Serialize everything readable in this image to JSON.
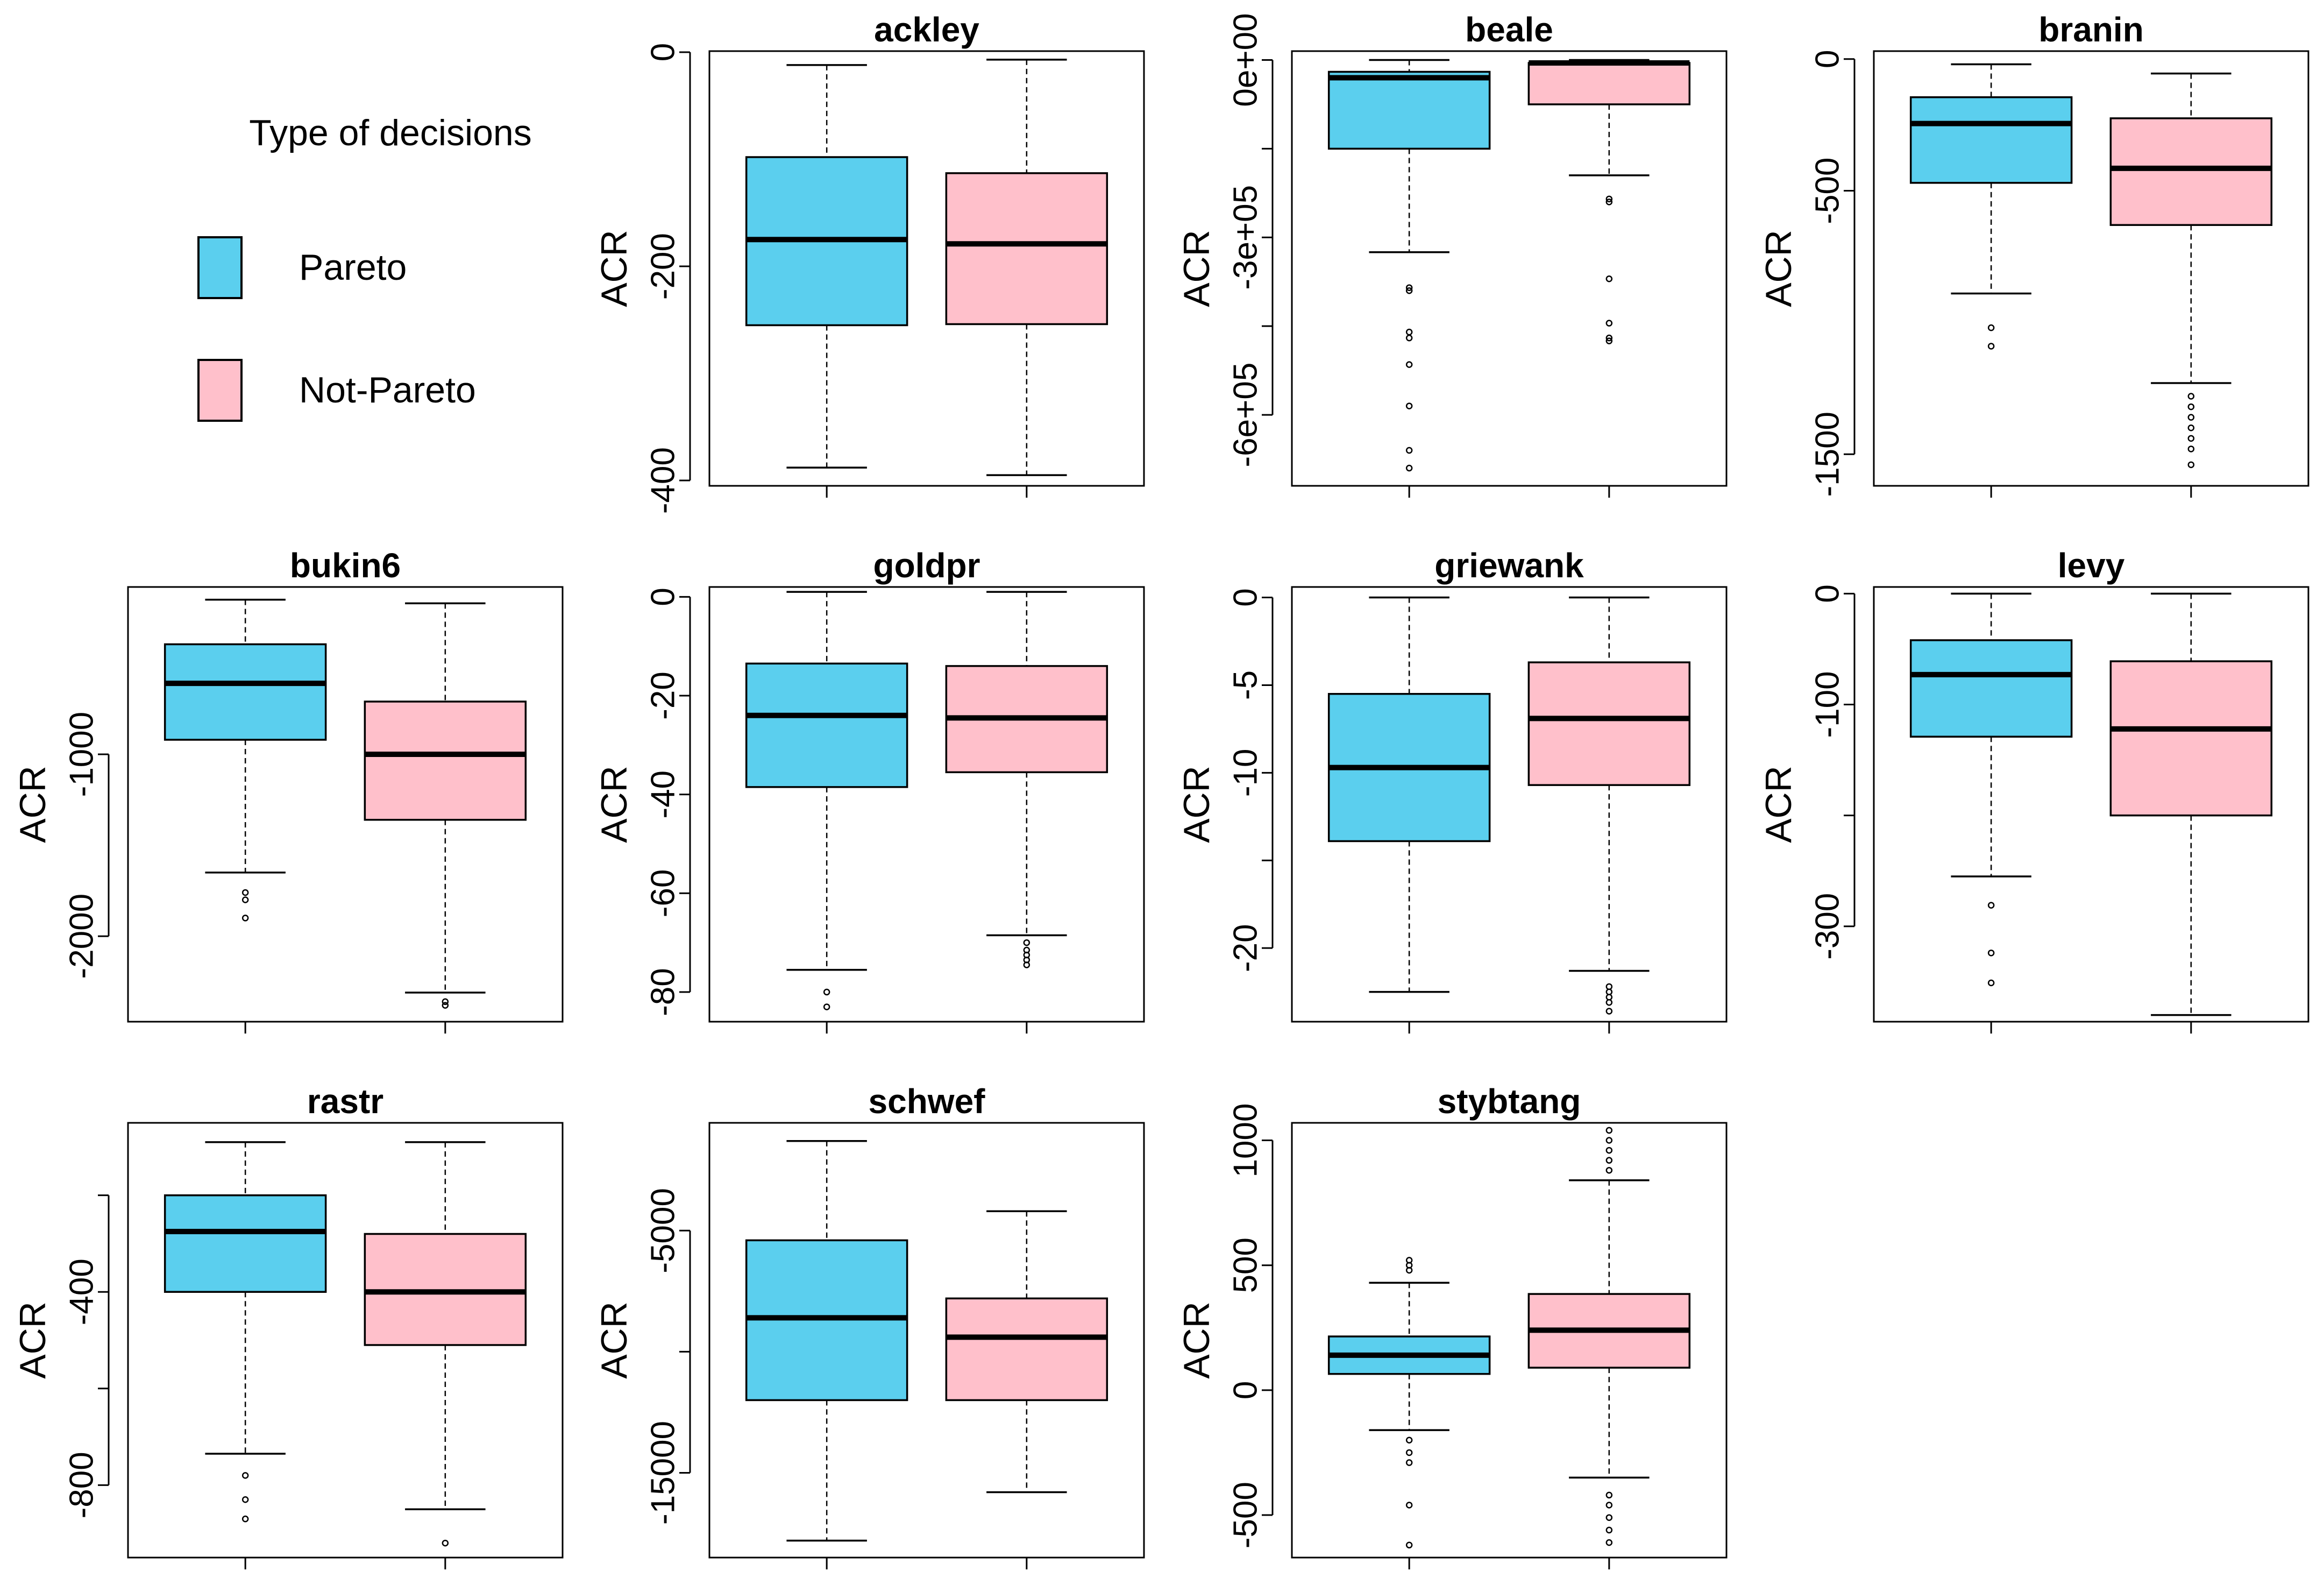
{
  "chart_data": {
    "type": "boxplot",
    "legend": {
      "title": "Type of decisions",
      "placement": "top-left",
      "items": [
        {
          "label": "Pareto",
          "color": "#5bcfee"
        },
        {
          "label": "Not-Pareto",
          "color": "#ffc0cb"
        }
      ]
    },
    "ylabel": "ACR",
    "series_colors": [
      "#5bcfee",
      "#ffc0cb"
    ],
    "panels": [
      {
        "title": "ackley",
        "ylim": [
          -405,
          1
        ],
        "yticks": [
          0,
          -200,
          -400
        ],
        "ytick_labels": [
          "0",
          "-200",
          "-400"
        ],
        "boxes": [
          {
            "series": "Pareto",
            "whisker_high": -12,
            "q3": -98,
            "median": -175,
            "q1": -255,
            "whisker_low": -388,
            "outliers": []
          },
          {
            "series": "Not-Pareto",
            "whisker_high": -7,
            "q3": -113,
            "median": -179,
            "q1": -254,
            "whisker_low": -395,
            "outliers": []
          }
        ]
      },
      {
        "title": "beale",
        "ylim": [
          -720000,
          15000
        ],
        "yticks": [
          0,
          -300000,
          -600000
        ],
        "ytick_labels": [
          "0e+00",
          "-3e+05",
          "-6e+05"
        ],
        "ytick_minor": [
          -150000,
          -450000
        ],
        "boxes": [
          {
            "series": "Pareto",
            "whisker_high": 0,
            "q3": -20000,
            "median": -30000,
            "q1": -150000,
            "whisker_low": -325000,
            "outliers": [
              -385000,
              -390000,
              -460000,
              -470000,
              -515000,
              -585000,
              -660000,
              -690000
            ]
          },
          {
            "series": "Not-Pareto",
            "whisker_high": 0,
            "q3": -5000,
            "median": -5000,
            "q1": -75000,
            "whisker_low": -195000,
            "outliers": [
              -235000,
              -240000,
              -370000,
              -445000,
              -470000,
              -475000
            ]
          }
        ]
      },
      {
        "title": "branin",
        "ylim": [
          -1620,
          30
        ],
        "yticks": [
          0,
          -500,
          -1500
        ],
        "ytick_labels": [
          "0",
          "-500",
          "-1500"
        ],
        "boxes": [
          {
            "series": "Pareto",
            "whisker_high": -20,
            "q3": -145,
            "median": -245,
            "q1": -470,
            "whisker_low": -890,
            "outliers": [
              -1020,
              -1090
            ]
          },
          {
            "series": "Not-Pareto",
            "whisker_high": -55,
            "q3": -225,
            "median": -415,
            "q1": -630,
            "whisker_low": -1230,
            "outliers": [
              -1280,
              -1320,
              -1360,
              -1400,
              -1440,
              -1480,
              -1540
            ]
          }
        ]
      },
      {
        "title": "bukin6",
        "ylim": [
          -2470,
          -80
        ],
        "yticks": [
          -1000,
          -2000
        ],
        "ytick_labels": [
          "-1000",
          "-2000"
        ],
        "boxes": [
          {
            "series": "Pareto",
            "whisker_high": -150,
            "q3": -395,
            "median": -610,
            "q1": -920,
            "whisker_low": -1650,
            "outliers": [
              -1760,
              -1800,
              -1900
            ]
          },
          {
            "series": "Not-Pareto",
            "whisker_high": -170,
            "q3": -710,
            "median": -1000,
            "q1": -1360,
            "whisker_low": -2310,
            "outliers": [
              -2360,
              -2380
            ]
          }
        ]
      },
      {
        "title": "goldpr",
        "ylim": [
          -86,
          2
        ],
        "yticks": [
          0,
          -20,
          -40,
          -60,
          -80
        ],
        "ytick_labels": [
          "0",
          "-20",
          "-40",
          "-60",
          "-80"
        ],
        "boxes": [
          {
            "series": "Pareto",
            "whisker_high": 1,
            "q3": -13.5,
            "median": -24,
            "q1": -38.5,
            "whisker_low": -75.5,
            "outliers": [
              -80,
              -83
            ]
          },
          {
            "series": "Not-Pareto",
            "whisker_high": 1,
            "q3": -14,
            "median": -24.5,
            "q1": -35.5,
            "whisker_low": -68.5,
            "outliers": [
              -70,
              -71.5,
              -72.5,
              -73.5,
              -74.5
            ]
          }
        ]
      },
      {
        "title": "griewank",
        "ylim": [
          -24.2,
          0.6
        ],
        "yticks": [
          0,
          -5,
          -10,
          -20
        ],
        "ytick_labels": [
          "0",
          "-5",
          "-10",
          "-20"
        ],
        "ytick_minor": [
          -15
        ],
        "boxes": [
          {
            "series": "Pareto",
            "whisker_high": 0,
            "q3": -5.5,
            "median": -9.7,
            "q1": -13.9,
            "whisker_low": -22.5,
            "outliers": []
          },
          {
            "series": "Not-Pareto",
            "whisker_high": 0,
            "q3": -3.7,
            "median": -6.9,
            "q1": -10.7,
            "whisker_low": -21.3,
            "outliers": [
              -22.2,
              -22.5,
              -22.8,
              -23.1,
              -23.6
            ]
          }
        ]
      },
      {
        "title": "levy",
        "ylim": [
          -386,
          6
        ],
        "yticks": [
          0,
          -100,
          -300
        ],
        "ytick_labels": [
          "0",
          "-100",
          "-300"
        ],
        "ytick_minor": [
          -200
        ],
        "boxes": [
          {
            "series": "Pareto",
            "whisker_high": 0,
            "q3": -42,
            "median": -73,
            "q1": -129,
            "whisker_low": -255,
            "outliers": [
              -281,
              -324,
              -351
            ]
          },
          {
            "series": "Not-Pareto",
            "whisker_high": 0,
            "q3": -61,
            "median": -122,
            "q1": -200,
            "whisker_low": -380,
            "outliers": []
          }
        ]
      },
      {
        "title": "rastr",
        "ylim": [
          -950,
          -50
        ],
        "yticks": [
          -400,
          -800
        ],
        "ytick_labels": [
          "-400",
          "-800"
        ],
        "ytick_minor": [
          -200,
          -600
        ],
        "boxes": [
          {
            "series": "Pareto",
            "whisker_high": -90,
            "q3": -200,
            "median": -275,
            "q1": -400,
            "whisker_low": -735,
            "outliers": [
              -780,
              -830,
              -870
            ]
          },
          {
            "series": "Not-Pareto",
            "whisker_high": -90,
            "q3": -280,
            "median": -400,
            "q1": -510,
            "whisker_low": -850,
            "outliers": [
              -920
            ]
          }
        ]
      },
      {
        "title": "schwef",
        "ylim": [
          -18500,
          -550
        ],
        "yticks": [
          -5000,
          -15000
        ],
        "ytick_labels": [
          "-5000",
          "-15000"
        ],
        "ytick_minor": [
          -10000
        ],
        "boxes": [
          {
            "series": "Pareto",
            "whisker_high": -1300,
            "q3": -5400,
            "median": -8600,
            "q1": -12000,
            "whisker_low": -17800,
            "outliers": []
          },
          {
            "series": "Not-Pareto",
            "whisker_high": -4200,
            "q3": -7800,
            "median": -9400,
            "q1": -12000,
            "whisker_low": -15800,
            "outliers": []
          }
        ]
      },
      {
        "title": "stybtang",
        "ylim": [
          -670,
          1070
        ],
        "yticks": [
          -500,
          0,
          500,
          1000
        ],
        "ytick_labels": [
          "-500",
          "0",
          "500",
          "1000"
        ],
        "boxes": [
          {
            "series": "Pareto",
            "whisker_high": 430,
            "q3": 215,
            "median": 140,
            "q1": 65,
            "whisker_low": -160,
            "outliers": [
              520,
              500,
              480,
              -200,
              -250,
              -290,
              -460,
              -620
            ]
          },
          {
            "series": "Not-Pareto",
            "whisker_high": 840,
            "q3": 385,
            "median": 240,
            "q1": 90,
            "whisker_low": -350,
            "outliers": [
              1040,
              1000,
              960,
              920,
              880,
              -420,
              -460,
              -510,
              -560,
              -610
            ]
          }
        ]
      }
    ]
  }
}
